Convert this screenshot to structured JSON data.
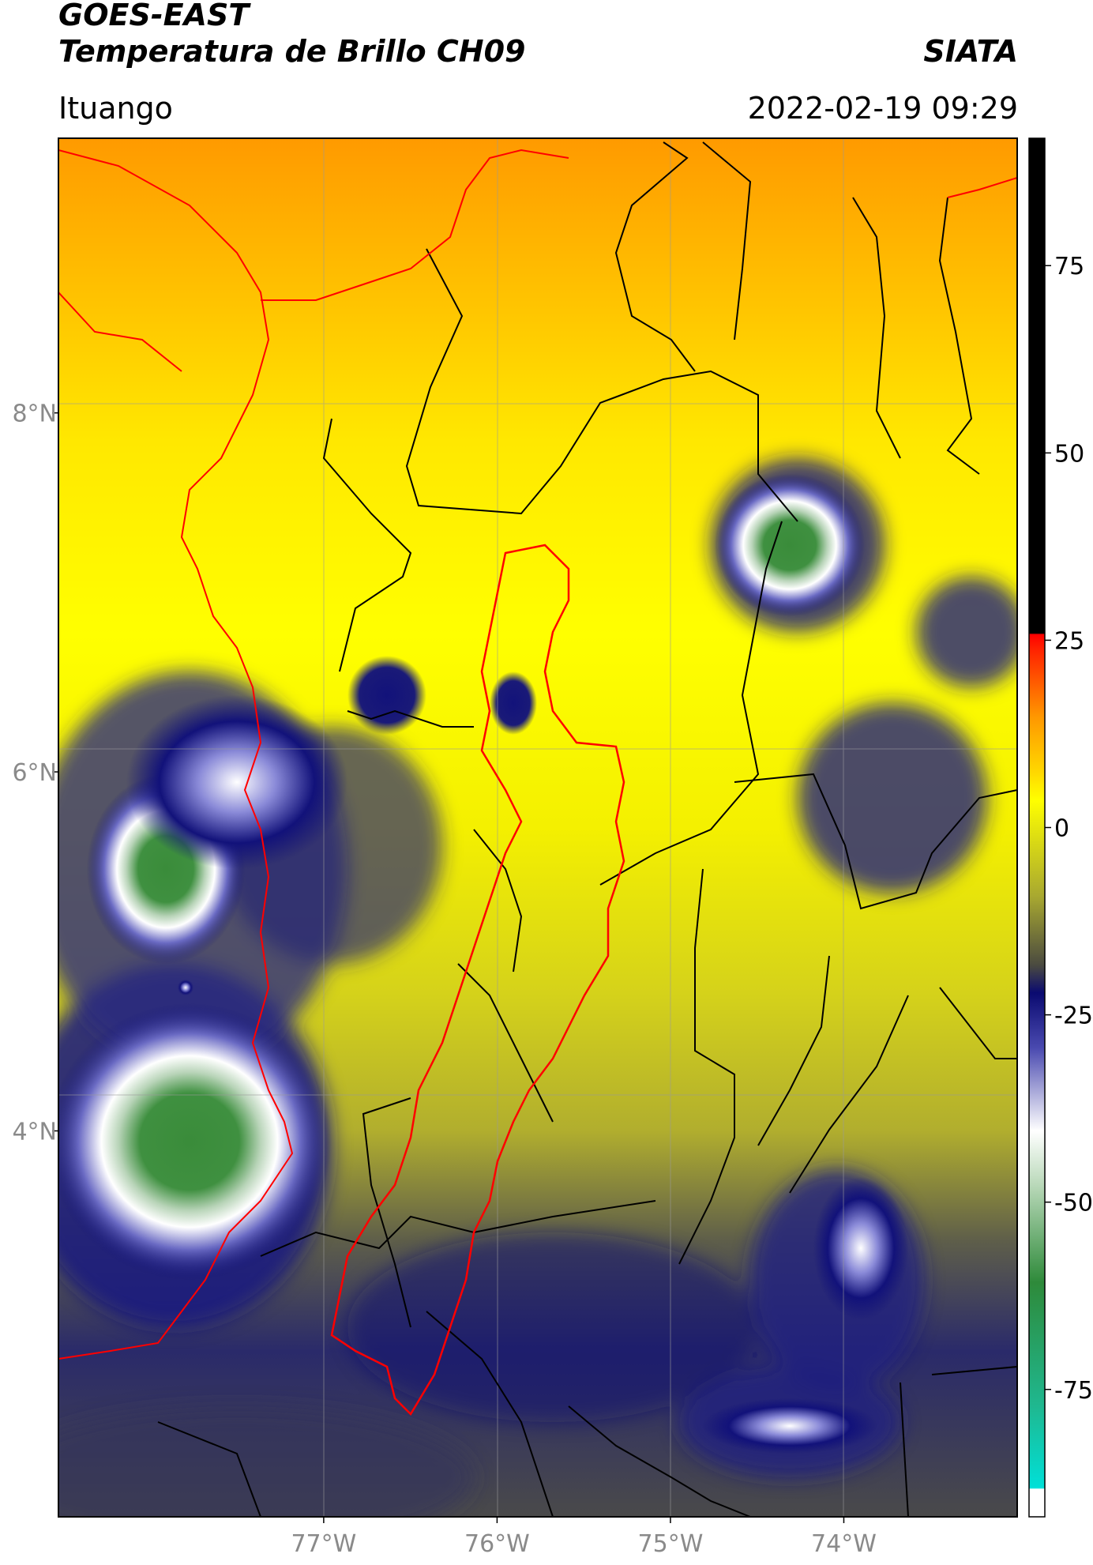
{
  "header": {
    "title_line1": "GOES-EAST",
    "title_line2": "Temperatura de Brillo CH09",
    "brand": "SIATA",
    "location": "Ituango",
    "timestamp": "2022-02-19 09:29"
  },
  "map": {
    "x_ticks": [
      {
        "lon": -77,
        "label": "77°W"
      },
      {
        "lon": -76,
        "label": "76°W"
      },
      {
        "lon": -75,
        "label": "75°W"
      },
      {
        "lon": -74,
        "label": "74°W"
      }
    ],
    "y_ticks": [
      {
        "lat": 8,
        "label": "8°N"
      },
      {
        "lat": 6,
        "label": "6°N"
      },
      {
        "lat": 4,
        "label": "4°N"
      }
    ],
    "lon_range": [
      -78.53,
      -73.0
    ],
    "lat_range": [
      1.85,
      9.53
    ],
    "colors": {
      "warm": "#ffa000",
      "mid": "#ffff00",
      "cool": "#b9b92a",
      "cold": "#12127a",
      "very_cold": "#ffffff",
      "coldest": "#3d8f3d",
      "ituango_outline": "#ff0000",
      "borders": "#000000",
      "coast": "#ff0000"
    }
  },
  "colorbar": {
    "ticks": [
      {
        "value": 75,
        "label": "75"
      },
      {
        "value": 50,
        "label": "50"
      },
      {
        "value": 25,
        "label": "25"
      },
      {
        "value": 0,
        "label": "0"
      },
      {
        "value": -25,
        "label": "-25"
      },
      {
        "value": -50,
        "label": "-50"
      },
      {
        "value": -75,
        "label": "-75"
      }
    ],
    "range": [
      -92,
      92
    ]
  }
}
